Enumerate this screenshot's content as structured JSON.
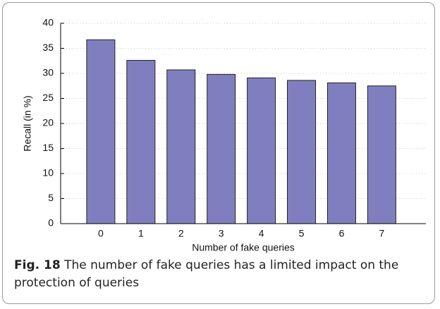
{
  "chart_data": {
    "type": "bar",
    "categories": [
      "0",
      "1",
      "2",
      "3",
      "4",
      "5",
      "6",
      "7"
    ],
    "values": [
      36.7,
      32.6,
      30.7,
      29.8,
      29.1,
      28.6,
      28.1,
      27.5
    ],
    "color": "#7f7fbf",
    "ylim": [
      0,
      40
    ],
    "yticks": [
      0,
      5,
      10,
      15,
      20,
      25,
      30,
      35,
      40
    ],
    "grid": true,
    "ylabel": "Recall (in %)",
    "xlabel": "Number of fake queries"
  },
  "caption": {
    "label": "Fig. 18",
    "text": "The number of fake queries has a limited impact on the protection of queries"
  }
}
